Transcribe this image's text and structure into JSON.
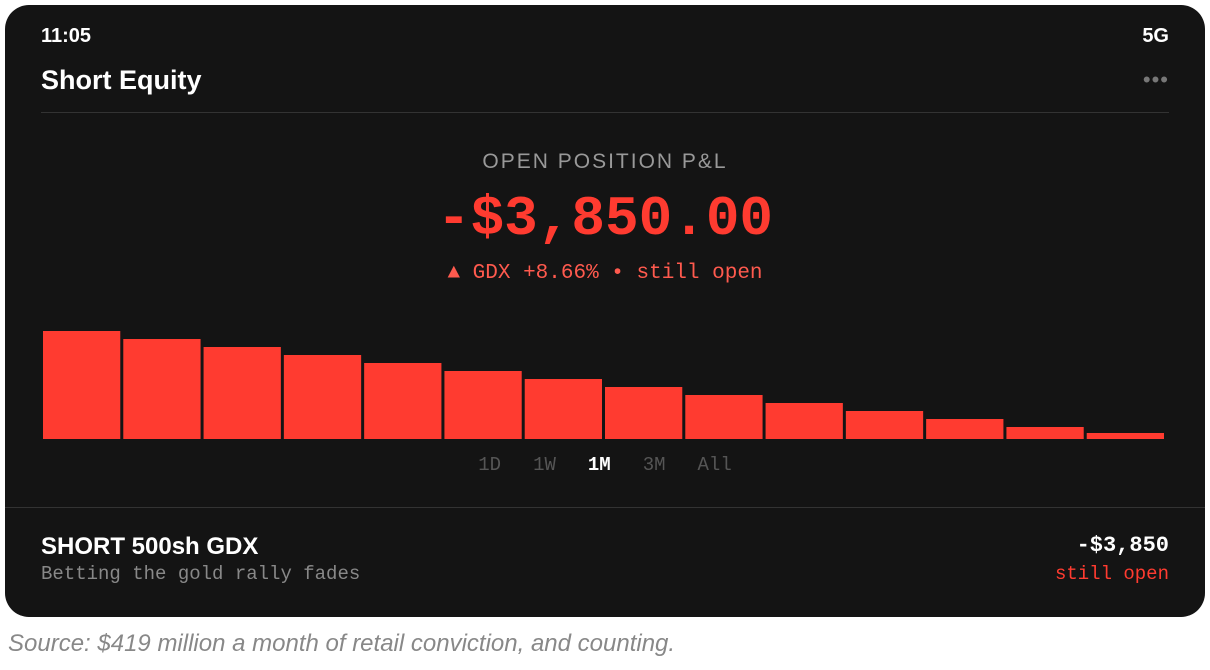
{
  "status_bar": {
    "time": "11:05",
    "network": "5G"
  },
  "header": {
    "title": "Short Equity"
  },
  "pnl": {
    "label": "OPEN POSITION P&L",
    "amount": "-$3,850.00",
    "change": "▲ GDX +8.66% • still open"
  },
  "chart": {
    "type": "bar",
    "values": [
      108,
      100,
      92,
      84,
      76,
      68,
      60,
      52,
      44,
      36,
      28,
      20,
      12,
      6
    ],
    "color": "#ff3b30",
    "ylim": [
      0,
      108
    ]
  },
  "range_tabs": {
    "options": [
      "1D",
      "1W",
      "1M",
      "3M",
      "All"
    ],
    "active": "1M"
  },
  "position": {
    "title": "SHORT 500sh GDX",
    "subtitle": "Betting the gold rally fades",
    "amount": "-$3,850",
    "status": "still open"
  },
  "caption": "Source: $419 million a month of retail conviction, and counting."
}
